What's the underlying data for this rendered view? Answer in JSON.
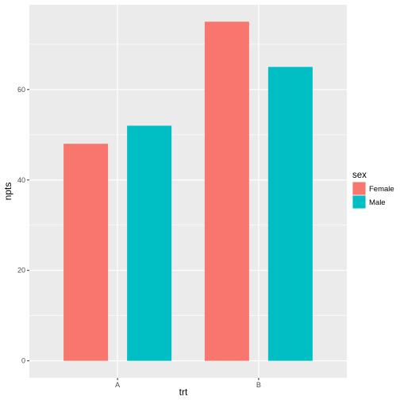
{
  "chart_data": {
    "type": "bar",
    "categories": [
      "A",
      "B"
    ],
    "series": [
      {
        "name": "Female",
        "values": [
          48,
          75
        ],
        "color": "#F8766D"
      },
      {
        "name": "Male",
        "values": [
          52,
          65
        ],
        "color": "#00BFC4"
      }
    ],
    "xlabel": "trt",
    "ylabel": "npts",
    "ylim": [
      -3.75,
      78.75
    ],
    "yticks": [
      0,
      20,
      40,
      60
    ],
    "legend": {
      "title": "sex",
      "position": "right"
    },
    "panel_background": "#EBEBEB",
    "grid_color": "#FFFFFF",
    "grid": true
  }
}
